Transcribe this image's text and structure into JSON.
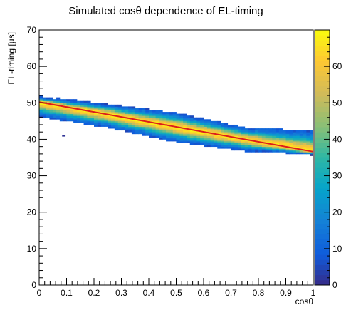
{
  "chart_data": {
    "type": "heatmap",
    "title": "Simulated cosθ dependence of EL-timing",
    "xlabel": "cosθ",
    "ylabel": "EL-timing [μs]",
    "xlim": [
      0,
      1
    ],
    "ylim": [
      0,
      70
    ],
    "zlim": [
      0,
      70
    ],
    "x_ticks": [
      "0",
      "0.1",
      "0.2",
      "0.3",
      "0.4",
      "0.5",
      "0.6",
      "0.7",
      "0.8",
      "0.9",
      "1"
    ],
    "y_ticks": [
      "0",
      "10",
      "20",
      "30",
      "40",
      "50",
      "60",
      "70"
    ],
    "z_ticks": [
      "0",
      "10",
      "20",
      "30",
      "40",
      "50",
      "60"
    ],
    "grid": false,
    "colorbar": "right",
    "fit_line": {
      "x": [
        0,
        1
      ],
      "y": [
        50.2,
        36.6
      ],
      "color": "#dd1c1c"
    },
    "band": {
      "description_points": [
        {
          "x": 0.0,
          "y_center": 50.2,
          "y_low": 46.5,
          "y_high": 51.5
        },
        {
          "x": 0.25,
          "y_center": 46.8,
          "y_low": 43.5,
          "y_high": 49.5
        },
        {
          "x": 0.5,
          "y_center": 43.4,
          "y_low": 39.5,
          "y_high": 47.0
        },
        {
          "x": 0.75,
          "y_center": 40.0,
          "y_low": 37.0,
          "y_high": 43.0
        },
        {
          "x": 1.0,
          "y_center": 36.6,
          "y_low": 36.0,
          "y_high": 42.0
        }
      ],
      "outliers": [
        {
          "x": 0.09,
          "y": 41.0
        }
      ]
    }
  }
}
